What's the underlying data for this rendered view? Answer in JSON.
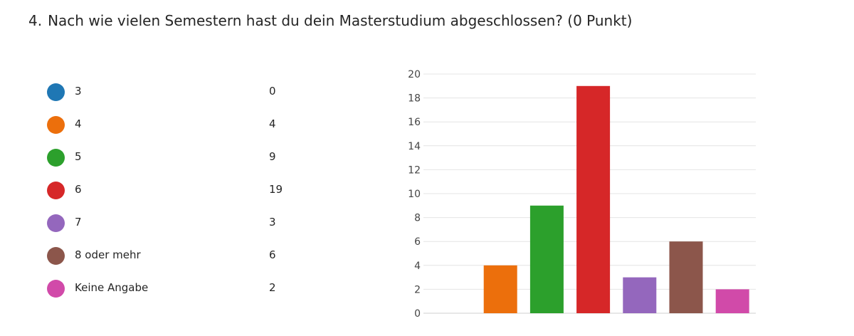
{
  "question": {
    "number": "4.",
    "text": "Nach wie vielen Semestern hast du dein Masterstudium abgeschlossen? (0 Punkt)"
  },
  "chart_data": {
    "type": "bar",
    "categories": [
      "3",
      "4",
      "5",
      "6",
      "7",
      "8 oder mehr",
      "Keine Angabe"
    ],
    "values": [
      0,
      4,
      9,
      19,
      3,
      6,
      2
    ],
    "colors": [
      "#1f77b4",
      "#ec6f0c",
      "#2ca02c",
      "#d62728",
      "#9467bd",
      "#8c564b",
      "#d14aa9"
    ],
    "ylim": [
      0,
      20
    ],
    "yticks": [
      0,
      2,
      4,
      6,
      8,
      10,
      12,
      14,
      16,
      18,
      20
    ],
    "grid": true,
    "legend_position": "left"
  }
}
